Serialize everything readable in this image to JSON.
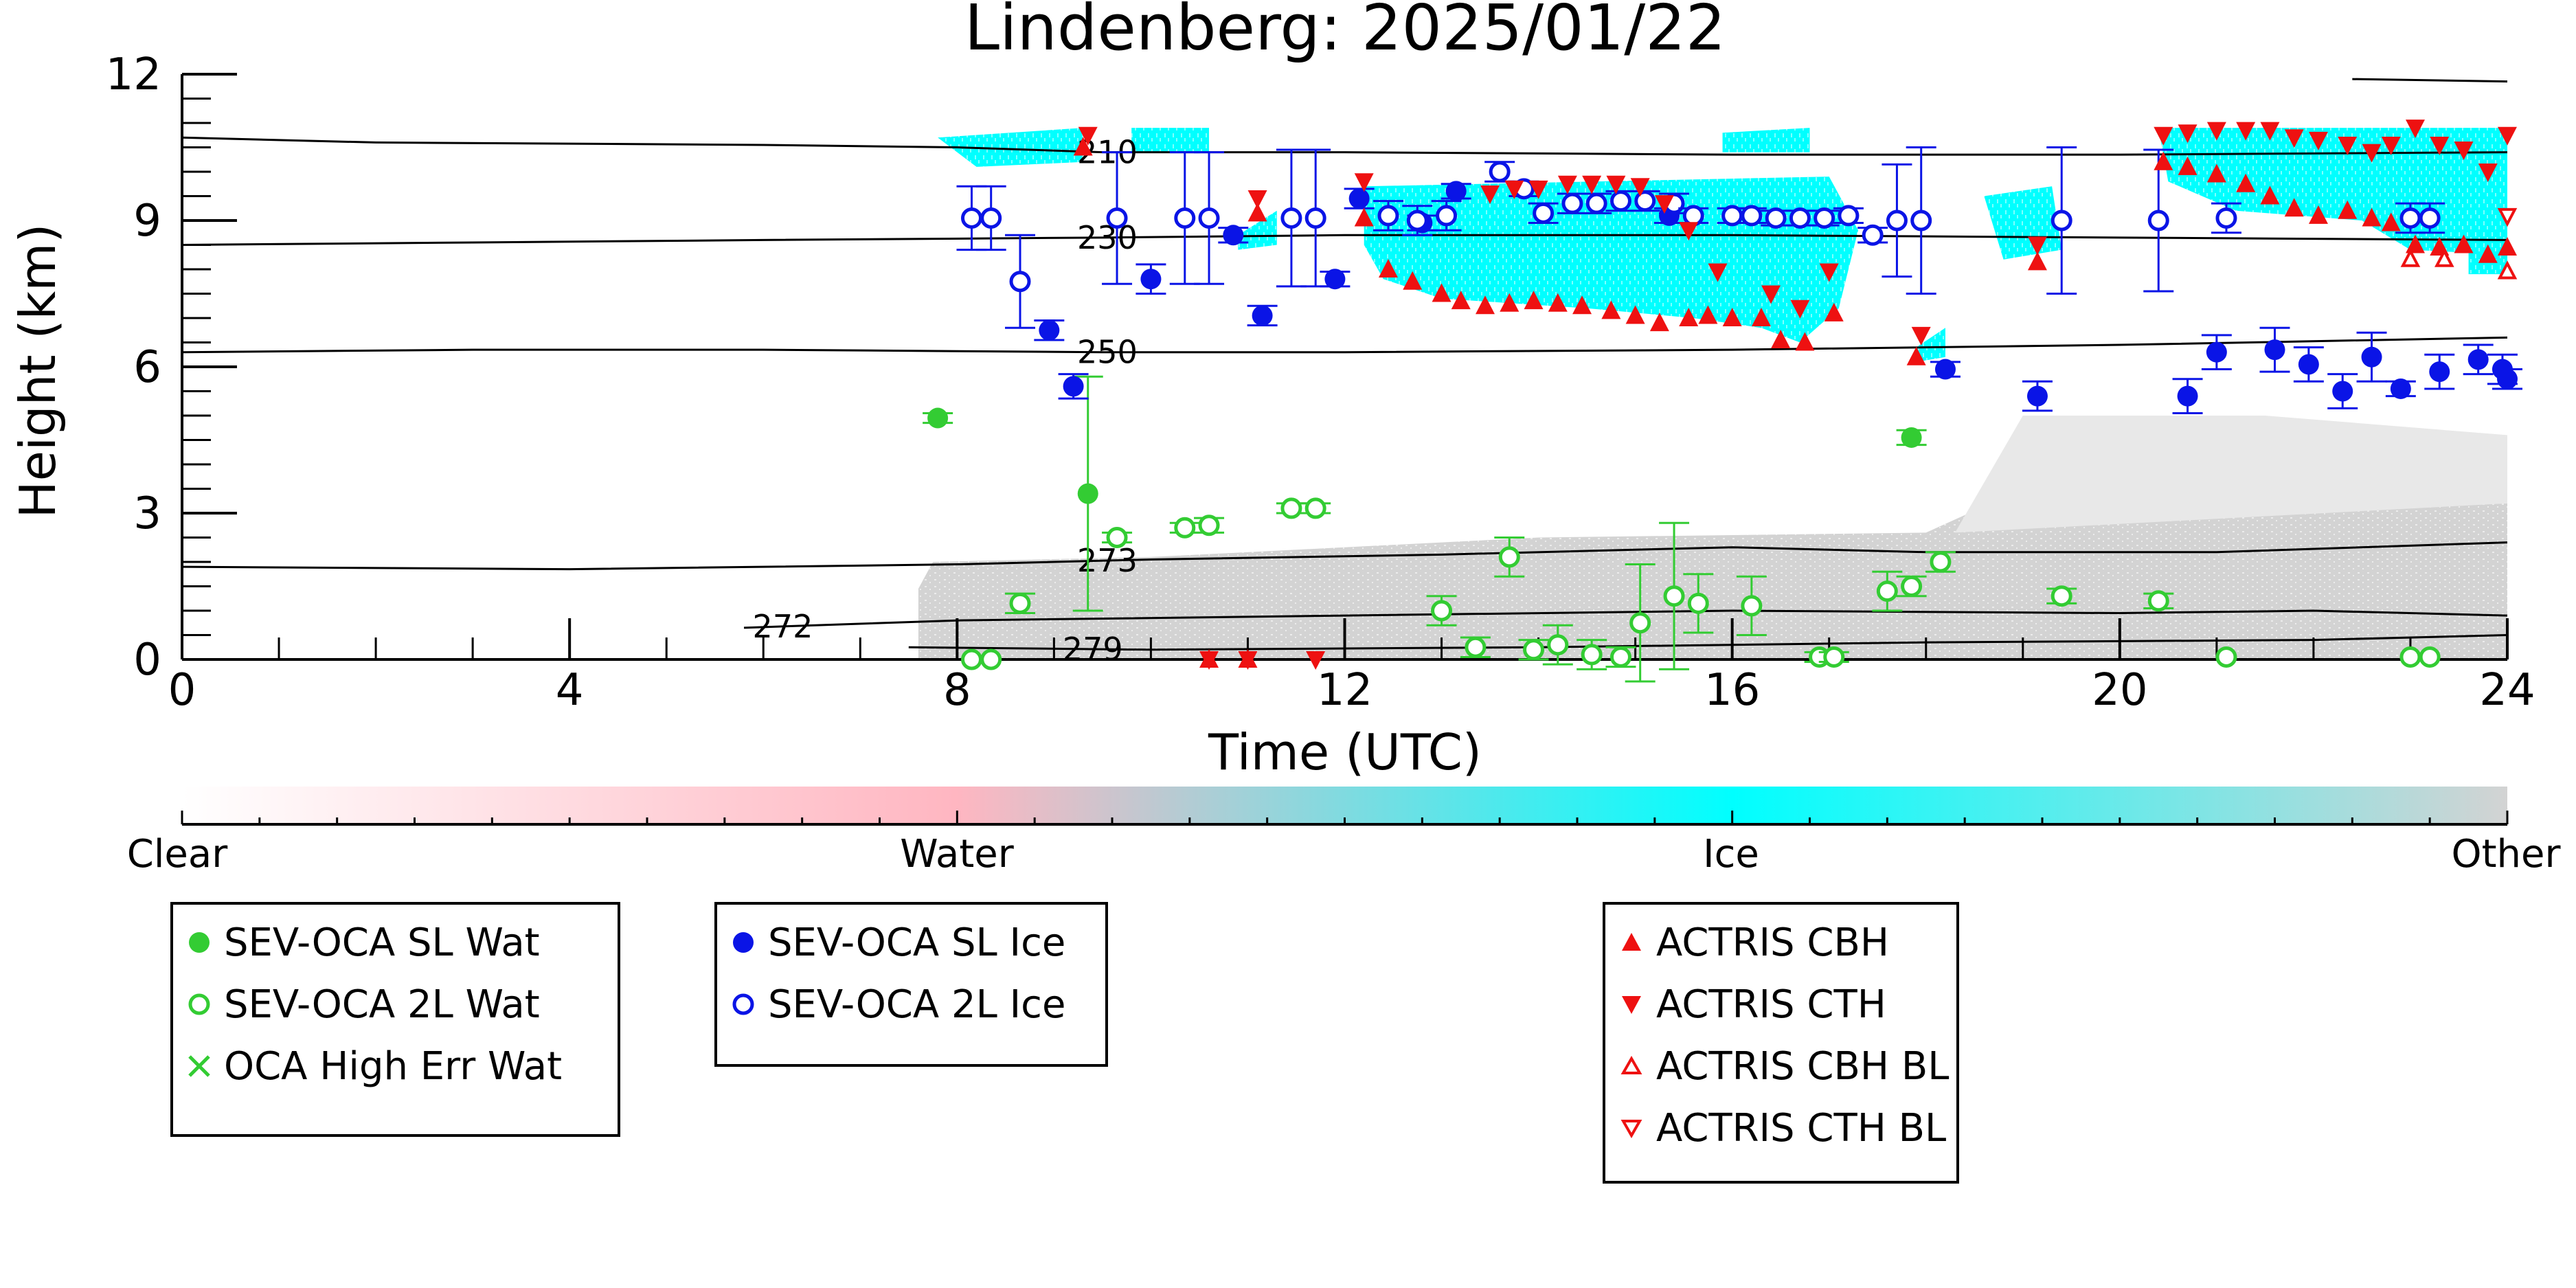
{
  "chart_data": {
    "type": "scatter",
    "title": "Lindenberg: 2025/01/22",
    "xlabel": "Time (UTC)",
    "ylabel": "Height (km)",
    "xlim": [
      0,
      24
    ],
    "ylim": [
      0,
      12
    ],
    "xticks": [
      "0",
      "4",
      "8",
      "12",
      "16",
      "20",
      "24"
    ],
    "yticks": [
      "0",
      "3",
      "6",
      "9",
      "12"
    ],
    "isotherm_labels": [
      "210",
      "230",
      "250",
      "273",
      "272",
      "279"
    ],
    "isotherms": [
      {
        "label": "210",
        "points": [
          [
            0,
            10.7
          ],
          [
            2,
            10.6
          ],
          [
            6,
            10.55
          ],
          [
            8,
            10.5
          ],
          [
            9.5,
            10.4
          ],
          [
            12,
            10.4
          ],
          [
            16,
            10.35
          ],
          [
            20,
            10.35
          ],
          [
            24,
            10.4
          ]
        ]
      },
      {
        "label": "230",
        "points": [
          [
            0,
            8.5
          ],
          [
            3,
            8.55
          ],
          [
            6,
            8.6
          ],
          [
            9.5,
            8.65
          ],
          [
            12,
            8.7
          ],
          [
            16,
            8.7
          ],
          [
            20,
            8.65
          ],
          [
            24,
            8.6
          ]
        ]
      },
      {
        "label": "250",
        "points": [
          [
            0,
            6.3
          ],
          [
            3,
            6.35
          ],
          [
            6,
            6.35
          ],
          [
            9.5,
            6.3
          ],
          [
            12,
            6.3
          ],
          [
            16,
            6.35
          ],
          [
            20,
            6.45
          ],
          [
            24,
            6.6
          ]
        ]
      },
      {
        "label": "273",
        "points": [
          [
            0,
            1.9
          ],
          [
            4,
            1.85
          ],
          [
            8,
            1.95
          ],
          [
            10,
            2.05
          ],
          [
            13,
            2.15
          ],
          [
            16,
            2.3
          ],
          [
            18,
            2.2
          ],
          [
            21,
            2.2
          ],
          [
            24,
            2.4
          ]
        ]
      },
      {
        "label": "272",
        "points": [
          [
            5.8,
            0.65
          ],
          [
            8,
            0.8
          ],
          [
            12,
            0.9
          ],
          [
            16,
            1.0
          ],
          [
            20,
            0.95
          ],
          [
            22,
            1.0
          ],
          [
            24,
            0.9
          ]
        ]
      },
      {
        "label": "279",
        "points": [
          [
            7.5,
            0.25
          ],
          [
            10,
            0.2
          ],
          [
            14,
            0.25
          ],
          [
            18,
            0.35
          ],
          [
            22,
            0.4
          ],
          [
            24,
            0.5
          ]
        ]
      },
      {
        "label": "",
        "points": [
          [
            22.4,
            11.9
          ],
          [
            24,
            11.85
          ]
        ]
      }
    ],
    "colorbar": {
      "labels": [
        "Clear",
        "Water",
        "Ice",
        "Other"
      ],
      "colors": [
        "#ffffff",
        "#ffb6c1",
        "#00ffff",
        "#d3d3d3"
      ]
    },
    "background_regions": [
      {
        "class": "Other",
        "color": "#d3d3d3",
        "x": [
          7.6,
          24
        ],
        "y_top_approx": 2.4
      },
      {
        "class": "Ice",
        "color": "#00ffff",
        "note_x": [
          7.8,
          24
        ],
        "y_range": [
          6.2,
          10.9
        ]
      }
    ],
    "series": [
      {
        "name": "SEV-OCA SL Wat",
        "marker": "filled-circle",
        "color": "#33cc33",
        "points": [
          [
            7.8,
            4.95,
            0.1
          ],
          [
            9.35,
            3.4,
            2.4
          ],
          [
            17.85,
            4.55,
            0.15
          ]
        ]
      },
      {
        "name": "SEV-OCA 2L Wat",
        "marker": "open-circle",
        "color": "#33cc33",
        "points": [
          [
            8.15,
            0.0,
            0.0
          ],
          [
            8.35,
            0.0,
            0.0
          ],
          [
            8.65,
            1.15,
            0.2
          ],
          [
            9.65,
            2.5,
            0.1
          ],
          [
            10.35,
            2.7,
            0.1
          ],
          [
            10.6,
            2.75,
            0.15
          ],
          [
            11.45,
            3.1,
            0.1
          ],
          [
            11.7,
            3.1,
            0.1
          ],
          [
            13.0,
            1.0,
            0.3
          ],
          [
            13.35,
            0.25,
            0.2
          ],
          [
            13.7,
            2.1,
            0.4
          ],
          [
            13.95,
            0.2,
            0.2
          ],
          [
            14.2,
            0.3,
            0.4
          ],
          [
            14.55,
            0.1,
            0.3
          ],
          [
            14.85,
            0.05,
            0.2
          ],
          [
            15.05,
            0.75,
            1.2
          ],
          [
            15.4,
            1.3,
            1.5
          ],
          [
            15.65,
            1.15,
            0.6
          ],
          [
            16.2,
            1.1,
            0.6
          ],
          [
            16.9,
            0.05,
            0.1
          ],
          [
            17.05,
            0.05,
            0.1
          ],
          [
            17.6,
            1.4,
            0.4
          ],
          [
            17.85,
            1.5,
            0.2
          ],
          [
            18.15,
            2.0,
            0.2
          ],
          [
            19.4,
            1.3,
            0.15
          ],
          [
            20.4,
            1.2,
            0.15
          ],
          [
            21.1,
            0.05,
            0.0
          ],
          [
            23.0,
            0.05,
            0.0
          ],
          [
            23.2,
            0.05,
            0.0
          ]
        ]
      },
      {
        "name": "OCA High Err Wat",
        "marker": "x",
        "color": "#33cc33",
        "points": []
      },
      {
        "name": "SEV-OCA SL Ice",
        "marker": "filled-circle",
        "color": "#0a14e6",
        "points": [
          [
            8.95,
            6.75,
            0.2
          ],
          [
            9.2,
            5.6,
            0.25
          ],
          [
            10.0,
            7.8,
            0.3
          ],
          [
            10.85,
            8.7,
            0.15
          ],
          [
            11.15,
            7.05,
            0.2
          ],
          [
            11.9,
            7.8,
            0.15
          ],
          [
            12.15,
            9.45,
            0.2
          ],
          [
            12.8,
            8.95,
            0.15
          ],
          [
            13.15,
            9.6,
            0.15
          ],
          [
            15.35,
            9.1,
            0.15
          ],
          [
            18.2,
            5.95,
            0.15
          ],
          [
            19.15,
            5.4,
            0.3
          ],
          [
            20.7,
            5.4,
            0.35
          ],
          [
            21.0,
            6.3,
            0.35
          ],
          [
            21.6,
            6.35,
            0.45
          ],
          [
            21.95,
            6.05,
            0.35
          ],
          [
            22.3,
            5.5,
            0.35
          ],
          [
            22.6,
            6.2,
            0.5
          ],
          [
            22.9,
            5.55,
            0.15
          ],
          [
            23.3,
            5.9,
            0.35
          ],
          [
            23.7,
            6.15,
            0.3
          ],
          [
            23.95,
            5.95,
            0.3
          ],
          [
            24.0,
            5.75,
            0.2
          ]
        ]
      },
      {
        "name": "SEV-OCA 2L Ice",
        "marker": "open-circle",
        "color": "#0a14e6",
        "points": [
          [
            8.15,
            9.05,
            0.65
          ],
          [
            8.35,
            9.05,
            0.65
          ],
          [
            8.65,
            7.75,
            0.95
          ],
          [
            9.65,
            9.05,
            1.35
          ],
          [
            10.35,
            9.05,
            1.35
          ],
          [
            10.6,
            9.05,
            1.35
          ],
          [
            11.45,
            9.05,
            1.4
          ],
          [
            11.7,
            9.05,
            1.4
          ],
          [
            12.45,
            9.1,
            0.3
          ],
          [
            12.75,
            9.0,
            0.3
          ],
          [
            13.05,
            9.1,
            0.3
          ],
          [
            13.6,
            10.0,
            0.2
          ],
          [
            13.85,
            9.65,
            0.15
          ],
          [
            14.05,
            9.15,
            0.2
          ],
          [
            14.35,
            9.35,
            0.2
          ],
          [
            14.6,
            9.35,
            0.2
          ],
          [
            14.85,
            9.4,
            0.2
          ],
          [
            15.1,
            9.4,
            0.2
          ],
          [
            15.4,
            9.35,
            0.2
          ],
          [
            15.6,
            9.1,
            0.15
          ],
          [
            16.0,
            9.1,
            0.15
          ],
          [
            16.2,
            9.1,
            0.15
          ],
          [
            16.45,
            9.05,
            0.15
          ],
          [
            16.7,
            9.05,
            0.15
          ],
          [
            16.95,
            9.05,
            0.15
          ],
          [
            17.2,
            9.1,
            0.15
          ],
          [
            17.45,
            8.7,
            0.15
          ],
          [
            17.7,
            9.0,
            1.15
          ],
          [
            17.95,
            9.0,
            1.5
          ],
          [
            19.4,
            9.0,
            1.5
          ],
          [
            20.4,
            9.0,
            1.45
          ],
          [
            21.1,
            9.05,
            0.3
          ],
          [
            23.0,
            9.05,
            0.3
          ],
          [
            23.2,
            9.05,
            0.3
          ]
        ]
      },
      {
        "name": "ACTRIS CBH",
        "marker": "filled-triangle-up",
        "color": "#ee1111",
        "points": [
          [
            9.3,
            10.5
          ],
          [
            11.1,
            9.15
          ],
          [
            12.2,
            9.05
          ],
          [
            12.45,
            8.0
          ],
          [
            12.7,
            7.75
          ],
          [
            13.0,
            7.5
          ],
          [
            13.2,
            7.35
          ],
          [
            13.45,
            7.25
          ],
          [
            13.7,
            7.3
          ],
          [
            13.95,
            7.35
          ],
          [
            14.2,
            7.3
          ],
          [
            14.45,
            7.25
          ],
          [
            14.75,
            7.15
          ],
          [
            15.0,
            7.05
          ],
          [
            15.25,
            6.9
          ],
          [
            15.55,
            7.0
          ],
          [
            15.75,
            7.05
          ],
          [
            16.0,
            7.0
          ],
          [
            16.3,
            7.0
          ],
          [
            16.5,
            6.55
          ],
          [
            16.75,
            6.5
          ],
          [
            17.05,
            7.1
          ],
          [
            17.9,
            6.2
          ],
          [
            19.15,
            8.15
          ],
          [
            20.45,
            10.2
          ],
          [
            20.7,
            10.1
          ],
          [
            21.0,
            9.95
          ],
          [
            21.3,
            9.75
          ],
          [
            21.55,
            9.5
          ],
          [
            21.8,
            9.25
          ],
          [
            22.05,
            9.1
          ],
          [
            22.35,
            9.2
          ],
          [
            22.6,
            9.05
          ],
          [
            22.8,
            8.95
          ],
          [
            23.05,
            8.5
          ],
          [
            23.3,
            8.45
          ],
          [
            23.55,
            8.5
          ],
          [
            23.8,
            8.3
          ],
          [
            24.0,
            8.45
          ],
          [
            10.6,
            0.0
          ],
          [
            11.0,
            0.0
          ]
        ]
      },
      {
        "name": "ACTRIS CTH",
        "marker": "filled-triangle-down",
        "color": "#ee1111",
        "points": [
          [
            9.35,
            10.75
          ],
          [
            11.1,
            9.45
          ],
          [
            12.2,
            9.8
          ],
          [
            13.5,
            9.55
          ],
          [
            13.75,
            9.65
          ],
          [
            14.0,
            9.65
          ],
          [
            14.3,
            9.75
          ],
          [
            14.55,
            9.75
          ],
          [
            14.8,
            9.75
          ],
          [
            15.05,
            9.7
          ],
          [
            15.3,
            9.35
          ],
          [
            15.55,
            8.8
          ],
          [
            15.85,
            7.95
          ],
          [
            16.4,
            7.5
          ],
          [
            16.7,
            7.2
          ],
          [
            17.0,
            7.95
          ],
          [
            17.95,
            6.65
          ],
          [
            19.15,
            8.5
          ],
          [
            20.45,
            10.75
          ],
          [
            20.7,
            10.8
          ],
          [
            21.0,
            10.85
          ],
          [
            21.3,
            10.85
          ],
          [
            21.55,
            10.85
          ],
          [
            21.8,
            10.7
          ],
          [
            22.05,
            10.65
          ],
          [
            22.35,
            10.55
          ],
          [
            22.6,
            10.4
          ],
          [
            22.8,
            10.55
          ],
          [
            23.05,
            10.9
          ],
          [
            23.3,
            10.55
          ],
          [
            23.55,
            10.45
          ],
          [
            23.8,
            10.0
          ],
          [
            24.0,
            10.75
          ],
          [
            10.6,
            0.0
          ],
          [
            11.0,
            0.0
          ],
          [
            11.7,
            0.0
          ]
        ]
      },
      {
        "name": "ACTRIS CBH BL",
        "marker": "open-triangle-up",
        "color": "#ee1111",
        "points": [
          [
            23.0,
            8.2
          ],
          [
            23.35,
            8.2
          ],
          [
            24.0,
            7.95
          ]
        ]
      },
      {
        "name": "ACTRIS CTH BL",
        "marker": "open-triangle-down",
        "color": "#ee1111",
        "points": [
          [
            24.0,
            9.1
          ]
        ]
      }
    ]
  },
  "legends": [
    {
      "items": [
        "SEV-OCA SL Wat",
        "SEV-OCA 2L Wat",
        "OCA High Err Wat"
      ]
    },
    {
      "items": [
        "SEV-OCA SL Ice",
        "SEV-OCA 2L Ice"
      ]
    },
    {
      "items": [
        "ACTRIS CBH",
        "ACTRIS CTH",
        "ACTRIS CBH BL",
        "ACTRIS CTH BL"
      ]
    }
  ]
}
